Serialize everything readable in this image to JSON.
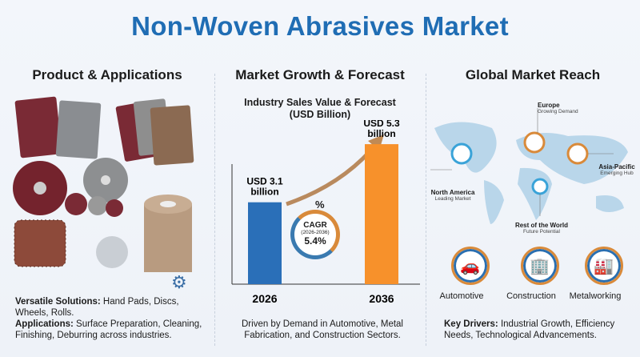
{
  "title": "Non-Woven Abrasives Market",
  "left": {
    "heading": "Product & Applications",
    "line1_bold": "Versatile Solutions:",
    "line1": " Hand Pads, Discs, Wheels, Rolls.",
    "line2_bold": "Applications:",
    "line2": " Surface Preparation, Cleaning, Finishing, Deburring across industries."
  },
  "middle": {
    "heading": "Market Growth & Forecast",
    "footer": "Driven by Demand in Automotive, Metal Fabrication, and Construction Sectors.",
    "cagr": {
      "symbol": "%",
      "label": "CAGR",
      "period": "(2026-2036)",
      "value": "5.4%"
    }
  },
  "chart_data": {
    "type": "bar",
    "title": "Industry Sales Value & Forecast",
    "subtitle": "(USD Billion)",
    "categories": [
      "2026",
      "2036"
    ],
    "values": [
      3.1,
      5.3
    ],
    "data_labels": [
      "USD 3.1 billion",
      "USD 5.3 billion"
    ],
    "colors": [
      "#2a6fb8",
      "#f7912b"
    ],
    "ylim": [
      0,
      6
    ]
  },
  "right": {
    "heading": "Global Market Reach",
    "regions": [
      {
        "name": "Europe",
        "note": "Growing Demand"
      },
      {
        "name": "North America",
        "note": "Leading Market"
      },
      {
        "name": "Asia-Pacific",
        "note": "Emerging Hub"
      },
      {
        "name": "Rest of the World",
        "note": "Future Potential"
      }
    ],
    "industries": [
      {
        "label": "Automotive",
        "icon": "car-icon"
      },
      {
        "label": "Construction",
        "icon": "building-icon"
      },
      {
        "label": "Metalworking",
        "icon": "factory-icon"
      }
    ],
    "drivers_bold": "Key Drivers:",
    "drivers": " Industrial Growth, Efficiency Needs, Technological Advancements."
  }
}
